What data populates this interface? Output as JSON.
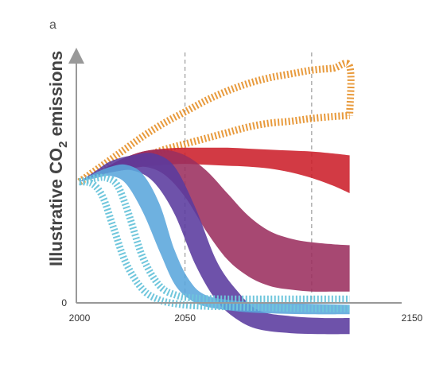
{
  "chart_data": {
    "type": "area",
    "panel_label": "a",
    "ylabel_main": "Illustrative CO",
    "ylabel_sub": "2",
    "ylabel_rest": " emissions",
    "x_ticks": [
      {
        "value": 2000,
        "label": "2000"
      },
      {
        "value": 2050,
        "label": "2050"
      },
      {
        "value": 2150,
        "label": "2150"
      }
    ],
    "y_ticks": [
      {
        "value": 0,
        "label": "0"
      }
    ],
    "xlim": [
      2000,
      2150
    ],
    "ylim": [
      0,
      10
    ],
    "grid_x": [
      2050,
      2110
    ],
    "series": [
      {
        "id": "orange-dashed-band",
        "style": "hatched-outline",
        "color": "#e89a3c",
        "upper": [
          [
            2000,
            6.4
          ],
          [
            2010,
            7.2
          ],
          [
            2020,
            8.0
          ],
          [
            2030,
            8.8
          ],
          [
            2040,
            9.5
          ],
          [
            2050,
            10.1
          ],
          [
            2060,
            10.7
          ],
          [
            2070,
            11.2
          ],
          [
            2080,
            11.6
          ],
          [
            2090,
            11.9
          ],
          [
            2100,
            12.1
          ],
          [
            2110,
            12.3
          ],
          [
            2120,
            12.4
          ],
          [
            2128,
            12.5
          ],
          [
            2128,
            9.9
          ]
        ],
        "lower": [
          [
            2000,
            6.4
          ],
          [
            2010,
            6.9
          ],
          [
            2020,
            7.3
          ],
          [
            2030,
            7.7
          ],
          [
            2040,
            8.1
          ],
          [
            2050,
            8.4
          ],
          [
            2060,
            8.7
          ],
          [
            2070,
            9.0
          ],
          [
            2080,
            9.3
          ],
          [
            2090,
            9.5
          ],
          [
            2100,
            9.6
          ],
          [
            2110,
            9.75
          ],
          [
            2120,
            9.85
          ],
          [
            2128,
            9.9
          ]
        ]
      },
      {
        "id": "red-band",
        "style": "filled",
        "color": "#cc1f2a",
        "upper": [
          [
            2000,
            6.4
          ],
          [
            2010,
            7.0
          ],
          [
            2020,
            7.6
          ],
          [
            2030,
            8.0
          ],
          [
            2040,
            8.15
          ],
          [
            2050,
            8.2
          ],
          [
            2060,
            8.2
          ],
          [
            2070,
            8.2
          ],
          [
            2080,
            8.15
          ],
          [
            2090,
            8.1
          ],
          [
            2100,
            8.05
          ],
          [
            2110,
            8.0
          ],
          [
            2120,
            7.9
          ],
          [
            2128,
            7.8
          ]
        ],
        "lower": [
          [
            2000,
            6.4
          ],
          [
            2010,
            6.8
          ],
          [
            2020,
            7.0
          ],
          [
            2030,
            7.2
          ],
          [
            2040,
            7.3
          ],
          [
            2050,
            7.35
          ],
          [
            2060,
            7.3
          ],
          [
            2070,
            7.25
          ],
          [
            2080,
            7.2
          ],
          [
            2090,
            7.1
          ],
          [
            2100,
            6.9
          ],
          [
            2110,
            6.6
          ],
          [
            2120,
            6.2
          ],
          [
            2128,
            5.8
          ]
        ]
      },
      {
        "id": "purple-red-band",
        "style": "filled",
        "color": "#9b2f5f",
        "upper": [
          [
            2000,
            6.4
          ],
          [
            2010,
            7.0
          ],
          [
            2020,
            7.6
          ],
          [
            2030,
            8.0
          ],
          [
            2040,
            8.1
          ],
          [
            2050,
            7.8
          ],
          [
            2060,
            7.0
          ],
          [
            2070,
            5.8
          ],
          [
            2080,
            4.6
          ],
          [
            2090,
            3.8
          ],
          [
            2100,
            3.4
          ],
          [
            2110,
            3.2
          ],
          [
            2120,
            3.1
          ],
          [
            2128,
            3.05
          ]
        ],
        "lower": [
          [
            2000,
            6.4
          ],
          [
            2010,
            6.8
          ],
          [
            2020,
            7.0
          ],
          [
            2030,
            7.2
          ],
          [
            2040,
            6.8
          ],
          [
            2050,
            5.6
          ],
          [
            2060,
            3.8
          ],
          [
            2070,
            2.3
          ],
          [
            2080,
            1.4
          ],
          [
            2090,
            0.9
          ],
          [
            2100,
            0.7
          ],
          [
            2110,
            0.6
          ],
          [
            2120,
            0.6
          ],
          [
            2128,
            0.6
          ]
        ]
      },
      {
        "id": "violet-band",
        "style": "filled",
        "color": "#5a3a9e",
        "upper": [
          [
            2000,
            6.4
          ],
          [
            2008,
            7.0
          ],
          [
            2015,
            7.5
          ],
          [
            2025,
            7.8
          ],
          [
            2035,
            7.9
          ],
          [
            2045,
            7.2
          ],
          [
            2055,
            5.0
          ],
          [
            2065,
            2.2
          ],
          [
            2075,
            0.6
          ],
          [
            2085,
            -0.4
          ],
          [
            2100,
            -0.7
          ],
          [
            2115,
            -0.8
          ],
          [
            2128,
            -0.8
          ]
        ],
        "lower": [
          [
            2000,
            6.4
          ],
          [
            2008,
            6.7
          ],
          [
            2015,
            6.9
          ],
          [
            2025,
            7.0
          ],
          [
            2035,
            6.4
          ],
          [
            2045,
            4.7
          ],
          [
            2055,
            2.0
          ],
          [
            2065,
            0.1
          ],
          [
            2075,
            -0.9
          ],
          [
            2085,
            -1.4
          ],
          [
            2100,
            -1.6
          ],
          [
            2115,
            -1.65
          ],
          [
            2128,
            -1.65
          ]
        ]
      },
      {
        "id": "light-blue-band",
        "style": "filled",
        "color": "#5aa6dc",
        "upper": [
          [
            2000,
            6.4
          ],
          [
            2008,
            6.9
          ],
          [
            2015,
            7.2
          ],
          [
            2022,
            7.3
          ],
          [
            2030,
            6.8
          ],
          [
            2038,
            5.2
          ],
          [
            2045,
            2.8
          ],
          [
            2052,
            1.2
          ],
          [
            2060,
            0.4
          ],
          [
            2075,
            0.1
          ],
          [
            2090,
            0.0
          ],
          [
            2110,
            -0.05
          ],
          [
            2128,
            -0.1
          ]
        ],
        "lower": [
          [
            2000,
            6.4
          ],
          [
            2008,
            6.6
          ],
          [
            2015,
            6.7
          ],
          [
            2022,
            6.3
          ],
          [
            2030,
            4.8
          ],
          [
            2038,
            2.7
          ],
          [
            2045,
            1.0
          ],
          [
            2052,
            0.2
          ],
          [
            2060,
            -0.2
          ],
          [
            2075,
            -0.45
          ],
          [
            2090,
            -0.55
          ],
          [
            2110,
            -0.6
          ],
          [
            2128,
            -0.6
          ]
        ]
      },
      {
        "id": "cyan-dashed-band",
        "style": "hatched-outline",
        "color": "#6fc6dc",
        "upper": [
          [
            2000,
            6.4
          ],
          [
            2008,
            6.6
          ],
          [
            2013,
            6.6
          ],
          [
            2018,
            6.2
          ],
          [
            2023,
            4.8
          ],
          [
            2030,
            2.4
          ],
          [
            2038,
            0.9
          ],
          [
            2046,
            0.4
          ],
          [
            2055,
            0.25
          ],
          [
            2070,
            0.2
          ],
          [
            2090,
            0.2
          ],
          [
            2110,
            0.2
          ],
          [
            2128,
            0.2
          ]
        ],
        "lower": [
          [
            2000,
            6.4
          ],
          [
            2006,
            6.3
          ],
          [
            2011,
            5.6
          ],
          [
            2016,
            4.0
          ],
          [
            2022,
            2.1
          ],
          [
            2030,
            0.7
          ],
          [
            2038,
            0.15
          ],
          [
            2046,
            -0.05
          ],
          [
            2055,
            -0.15
          ],
          [
            2070,
            -0.2
          ],
          [
            2090,
            -0.25
          ],
          [
            2110,
            -0.3
          ],
          [
            2128,
            -0.3
          ]
        ]
      }
    ]
  }
}
